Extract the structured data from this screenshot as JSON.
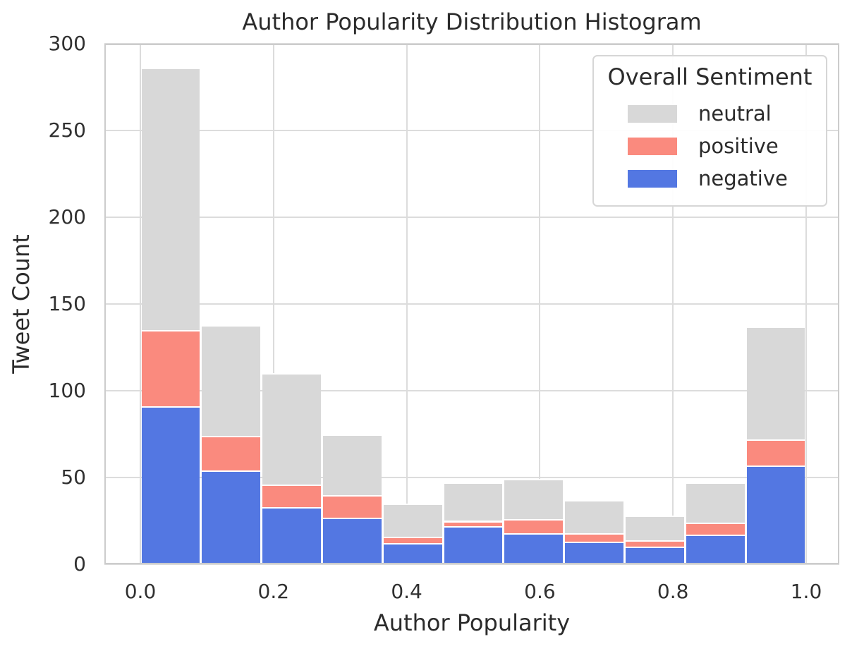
{
  "figure": {
    "background": "#ffffff",
    "text_color": "#2b2b2b",
    "grid_color": "#dcdcdc",
    "frame_color": "#cccccc"
  },
  "chart_data": {
    "type": "bar",
    "subtype": "stacked-histogram",
    "title": "Author Popularity Distribution Histogram",
    "xlabel": "Author Popularity",
    "ylabel": "Tweet Count",
    "grid": true,
    "xlim": [
      -0.054,
      1.05
    ],
    "ylim": [
      0,
      300
    ],
    "x_ticks": [
      0.0,
      0.2,
      0.4,
      0.6,
      0.8,
      1.0
    ],
    "x_tick_labels": [
      "0.0",
      "0.2",
      "0.4",
      "0.6",
      "0.8",
      "1.0"
    ],
    "y_ticks": [
      0,
      50,
      100,
      150,
      200,
      250,
      300
    ],
    "y_tick_labels": [
      "0",
      "50",
      "100",
      "150",
      "200",
      "250",
      "300"
    ],
    "bin_edges": [
      0.0,
      0.0909,
      0.1818,
      0.2727,
      0.3636,
      0.4545,
      0.5455,
      0.6364,
      0.7273,
      0.8182,
      0.9091,
      1.0
    ],
    "stack_order": [
      "negative",
      "positive",
      "neutral"
    ],
    "series": [
      {
        "name": "negative",
        "color": "#5377E2",
        "values": [
          91,
          54,
          33,
          27,
          12,
          22,
          18,
          13,
          10,
          17,
          57
        ]
      },
      {
        "name": "positive",
        "color": "#FA8A7E",
        "values": [
          44,
          20,
          13,
          13,
          4,
          3,
          8,
          5,
          4,
          7,
          15
        ]
      },
      {
        "name": "neutral",
        "color": "#D8D8D8",
        "values": [
          151,
          64,
          64,
          35,
          19,
          22,
          23,
          19,
          14,
          23,
          65
        ]
      }
    ],
    "bin_totals": [
      286,
      138,
      110,
      75,
      35,
      47,
      49,
      37,
      28,
      47,
      137
    ],
    "legend": {
      "title": "Overall Sentiment",
      "position": "upper right",
      "entries": [
        {
          "label": "neutral",
          "color": "#D8D8D8"
        },
        {
          "label": "positive",
          "color": "#FA8A7E"
        },
        {
          "label": "negative",
          "color": "#5377E2"
        }
      ]
    }
  }
}
